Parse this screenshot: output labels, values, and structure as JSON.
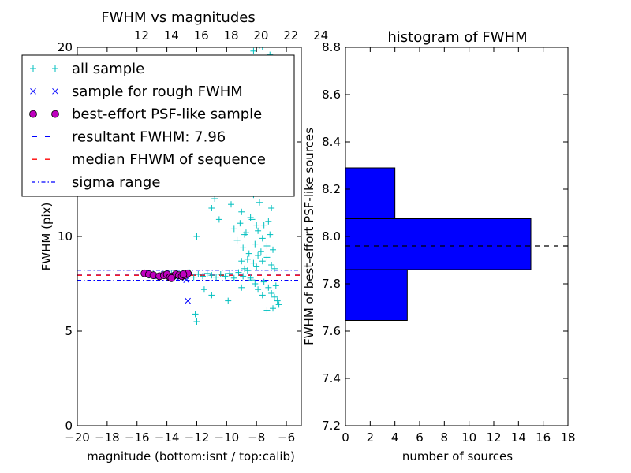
{
  "chart_data": [
    {
      "type": "scatter",
      "title": "FWHM vs magnitudes",
      "xlabel": "magnitude (bottom:isnt / top:calib)",
      "ylabel": "FWHM (pix)",
      "xlim": [
        -20,
        -5
      ],
      "ylim": [
        0,
        20
      ],
      "xticks": [
        -20,
        -18,
        -16,
        -14,
        -12,
        -10,
        -8,
        -6
      ],
      "xtick_labels": [
        "−20",
        "−18",
        "−16",
        "−14",
        "−12",
        "−10",
        "−8",
        "−6"
      ],
      "yticks": [
        0,
        5,
        10,
        15,
        20
      ],
      "ytick_labels": [
        "0",
        "5",
        "10",
        "15",
        "20"
      ],
      "top_axis": {
        "offset": 27.7,
        "ticks": [
          12,
          14,
          16,
          18,
          20,
          22,
          24
        ],
        "tick_labels": [
          "12",
          "14",
          "16",
          "18",
          "20",
          "22",
          "24"
        ]
      },
      "legend_position": "upper-left",
      "legend": [
        {
          "label": "all sample",
          "marker": "+",
          "color": "#00bfbf"
        },
        {
          "label": "sample for rough FWHM",
          "marker": "x",
          "color": "#0000ff"
        },
        {
          "label": "best-effort PSF-like sample",
          "marker": "o",
          "color": "#bf00bf"
        },
        {
          "label": "resultant FWHM: 7.96",
          "marker": "dash",
          "color": "#0000ff"
        },
        {
          "label": "median FHWM of sequence",
          "marker": "dash",
          "color": "#ff0000"
        },
        {
          "label": "sigma range",
          "marker": "dashdot",
          "color": "#0000ff"
        }
      ],
      "hlines": [
        {
          "y": 7.96,
          "color": "#0000ff",
          "style": "dash"
        },
        {
          "y": 7.95,
          "color": "#ff0000",
          "style": "dash"
        },
        {
          "y": 8.22,
          "color": "#0000ff",
          "style": "dashdot"
        },
        {
          "y": 7.68,
          "color": "#0000ff",
          "style": "dashdot"
        }
      ],
      "series": [
        {
          "name": "all sample",
          "marker": "+",
          "color": "#00bfbf",
          "points": [
            [
              -15.5,
              8.05
            ],
            [
              -15.2,
              7.95
            ],
            [
              -14.9,
              8.0
            ],
            [
              -14.6,
              7.9
            ],
            [
              -14.3,
              8.0
            ],
            [
              -14.0,
              7.95
            ],
            [
              -13.7,
              8.05
            ],
            [
              -13.4,
              7.9
            ],
            [
              -13.1,
              8.0
            ],
            [
              -12.8,
              7.95
            ],
            [
              -12.5,
              8.1
            ],
            [
              -12.2,
              7.85
            ],
            [
              -11.9,
              8.0
            ],
            [
              -11.6,
              7.9
            ],
            [
              -11.3,
              8.05
            ],
            [
              -11.0,
              7.95
            ],
            [
              -10.7,
              7.85
            ],
            [
              -10.4,
              8.0
            ],
            [
              -10.1,
              7.9
            ],
            [
              -9.8,
              8.05
            ],
            [
              -9.5,
              7.8
            ],
            [
              -9.2,
              8.1
            ],
            [
              -8.9,
              7.9
            ],
            [
              -8.6,
              8.2
            ],
            [
              -8.3,
              7.7
            ],
            [
              -8.0,
              8.4
            ],
            [
              -12.0,
              5.5
            ],
            [
              -12.1,
              5.9
            ],
            [
              -11.5,
              7.2
            ],
            [
              -11.0,
              6.9
            ],
            [
              -9.9,
              6.6
            ],
            [
              -9.0,
              7.3
            ],
            [
              -12.0,
              10.0
            ],
            [
              -11.0,
              11.5
            ],
            [
              -10.8,
              12.0
            ],
            [
              -10.5,
              10.9
            ],
            [
              -10.0,
              12.3
            ],
            [
              -9.7,
              11.7
            ],
            [
              -9.5,
              10.4
            ],
            [
              -9.2,
              12.6
            ],
            [
              -9.0,
              11.3
            ],
            [
              -8.8,
              10.1
            ],
            [
              -8.6,
              12.9
            ],
            [
              -8.4,
              11.0
            ],
            [
              -8.2,
              12.2
            ],
            [
              -8.0,
              10.6
            ],
            [
              -7.8,
              11.8
            ],
            [
              -7.6,
              9.9
            ],
            [
              -7.4,
              12.4
            ],
            [
              -7.2,
              10.8
            ],
            [
              -7.0,
              11.5
            ],
            [
              -9.3,
              9.8
            ],
            [
              -9.1,
              10.7
            ],
            [
              -8.9,
              9.4
            ],
            [
              -8.7,
              10.2
            ],
            [
              -8.5,
              9.1
            ],
            [
              -8.3,
              10.9
            ],
            [
              -8.1,
              9.6
            ],
            [
              -7.9,
              10.3
            ],
            [
              -7.7,
              9.2
            ],
            [
              -7.5,
              10.6
            ],
            [
              -7.3,
              9.5
            ],
            [
              -7.1,
              10.1
            ],
            [
              -6.9,
              9.3
            ],
            [
              -8.6,
              8.8
            ],
            [
              -8.2,
              8.6
            ],
            [
              -7.9,
              9.0
            ],
            [
              -7.6,
              8.7
            ],
            [
              -7.3,
              8.9
            ],
            [
              -7.0,
              8.5
            ],
            [
              -6.8,
              8.3
            ],
            [
              -8.8,
              8.3
            ],
            [
              -9.0,
              8.7
            ],
            [
              -7.5,
              7.6
            ],
            [
              -7.2,
              7.3
            ],
            [
              -7.0,
              7.0
            ],
            [
              -6.8,
              6.8
            ],
            [
              -6.6,
              6.6
            ],
            [
              -6.5,
              6.4
            ],
            [
              -6.9,
              6.2
            ],
            [
              -7.3,
              6.1
            ],
            [
              -6.7,
              7.4
            ],
            [
              -7.6,
              6.9
            ],
            [
              -7.9,
              7.2
            ],
            [
              -8.1,
              7.5
            ],
            [
              -8.4,
              7.8
            ],
            [
              -7.8,
              20.1
            ],
            [
              -7.6,
              20.0
            ],
            [
              -8.2,
              19.8
            ],
            [
              -7.4,
              20.3
            ],
            [
              -7.1,
              19.6
            ],
            [
              -8.4,
              14.3
            ],
            [
              -8.0,
              13.8
            ],
            [
              -7.7,
              14.6
            ],
            [
              -7.3,
              13.4
            ],
            [
              -7.0,
              14.0
            ],
            [
              -9.8,
              13.6
            ],
            [
              -9.4,
              13.2
            ],
            [
              -8.6,
              13.9
            ],
            [
              -7.5,
              13.1
            ]
          ]
        },
        {
          "name": "sample for rough FWHM",
          "marker": "x",
          "color": "#0000ff",
          "points": [
            [
              -15.4,
              8.05
            ],
            [
              -15.0,
              7.95
            ],
            [
              -14.6,
              7.9
            ],
            [
              -14.2,
              8.0
            ],
            [
              -13.8,
              7.95
            ],
            [
              -13.4,
              7.85
            ],
            [
              -13.0,
              8.0
            ],
            [
              -12.7,
              7.7
            ],
            [
              -12.6,
              6.6
            ]
          ]
        },
        {
          "name": "best-effort PSF-like sample",
          "marker": "o",
          "color": "#bf00bf",
          "points": [
            [
              -15.5,
              8.05
            ],
            [
              -15.2,
              8.0
            ],
            [
              -14.9,
              7.95
            ],
            [
              -14.5,
              7.9
            ],
            [
              -14.2,
              7.95
            ],
            [
              -14.0,
              8.0
            ],
            [
              -13.8,
              7.85
            ],
            [
              -13.6,
              7.9
            ],
            [
              -13.4,
              8.0
            ],
            [
              -13.2,
              7.95
            ],
            [
              -13.0,
              7.9
            ],
            [
              -12.8,
              7.95
            ],
            [
              -12.6,
              8.05
            ],
            [
              -13.7,
              7.8
            ],
            [
              -12.9,
              8.0
            ]
          ]
        }
      ]
    },
    {
      "type": "bar",
      "orientation": "horizontal",
      "title": "histogram of FWHM",
      "xlabel": "number of sources",
      "ylabel": "FWHM of best-effort PSF-like sources",
      "xlim": [
        0,
        18
      ],
      "ylim": [
        7.2,
        8.8
      ],
      "xticks": [
        0,
        2,
        4,
        6,
        8,
        10,
        12,
        14,
        16,
        18
      ],
      "xtick_labels": [
        "0",
        "2",
        "4",
        "6",
        "8",
        "10",
        "12",
        "14",
        "16",
        "18"
      ],
      "yticks": [
        7.2,
        7.4,
        7.6,
        7.8,
        8.0,
        8.2,
        8.4,
        8.6,
        8.8
      ],
      "ytick_labels": [
        "7.2",
        "7.4",
        "7.6",
        "7.8",
        "8.0",
        "8.2",
        "8.4",
        "8.6",
        "8.8"
      ],
      "bins": [
        {
          "low": 7.645,
          "high": 7.86,
          "count": 5
        },
        {
          "low": 7.86,
          "high": 8.075,
          "count": 15
        },
        {
          "low": 8.075,
          "high": 8.29,
          "count": 4
        }
      ],
      "bar_color": "#0000ff",
      "hline": {
        "y": 7.96,
        "color": "#000000",
        "style": "dash"
      }
    }
  ]
}
